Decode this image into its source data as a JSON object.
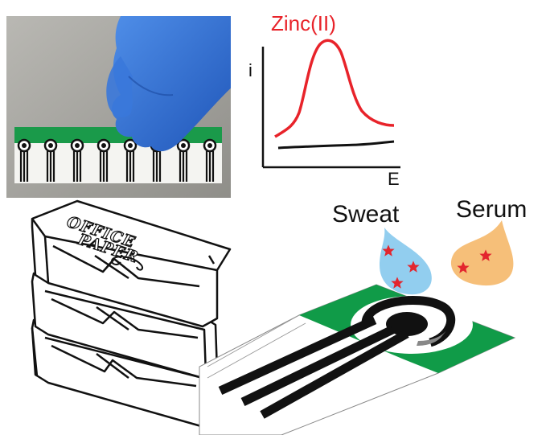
{
  "graph": {
    "title": "Zinc(II)",
    "ylabel": "i",
    "xlabel": "E",
    "colors": {
      "signal": "#e8232a",
      "baseline": "#111111"
    }
  },
  "labels": {
    "sweat": "Sweat",
    "serum": "Serum",
    "paper_logo_line1": "OFFICE",
    "paper_logo_line2": "PAPER"
  },
  "colors": {
    "electrode_green": "#109b48",
    "glove_blue": "#2f6fd6",
    "sweat_drop": "#7fc6ec",
    "serum_drop": "#f5b86a",
    "star_red": "#e3262e"
  },
  "photo": {
    "sensor_count": 8
  }
}
